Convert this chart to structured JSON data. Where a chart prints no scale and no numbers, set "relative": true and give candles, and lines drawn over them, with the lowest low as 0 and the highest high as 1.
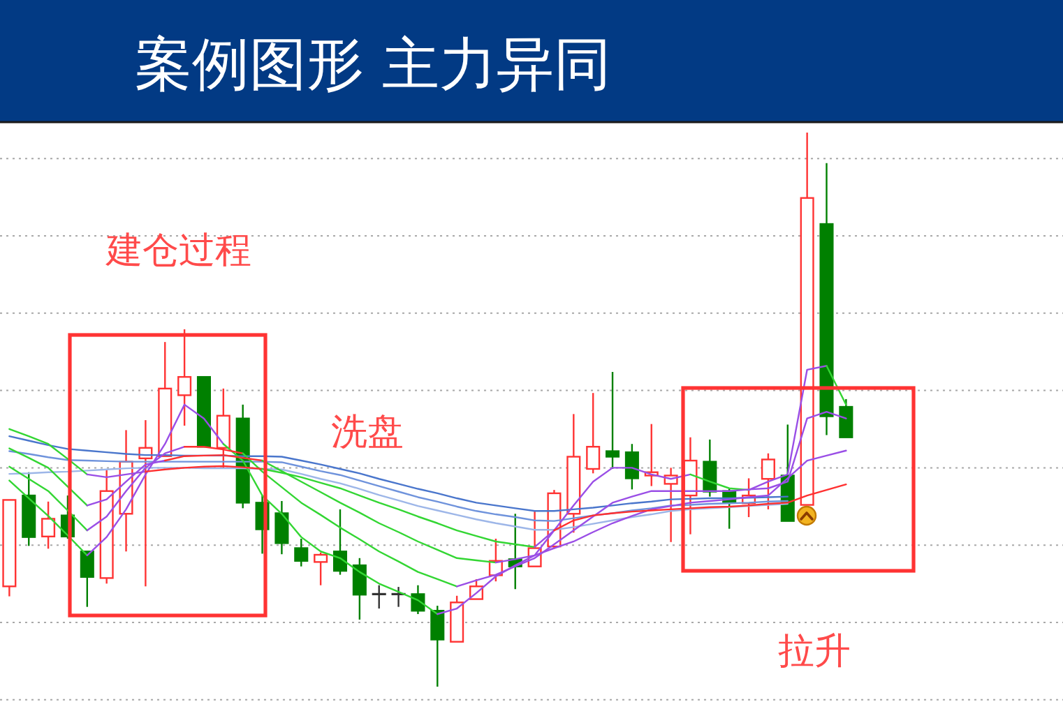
{
  "chart_data": {
    "type": "candlestick",
    "title": "案例图形 主力异同",
    "annotations": [
      "建仓过程",
      "洗盘",
      "拉升"
    ],
    "relative": true,
    "grid": "y",
    "categories": [
      null,
      null,
      null,
      null,
      null,
      null,
      null,
      null,
      null,
      null,
      null,
      null,
      null,
      null,
      null,
      null,
      null,
      null,
      null,
      null,
      null,
      null,
      null,
      null,
      null,
      null,
      null,
      null,
      null,
      null,
      null,
      null,
      null,
      null,
      null,
      null,
      null,
      null,
      null,
      null,
      null,
      null,
      null,
      null
    ],
    "ohlc": [
      [
        0.181,
        0.337,
        0.163,
        0.337
      ],
      [
        0.345,
        0.387,
        0.254,
        0.27
      ],
      [
        0.271,
        0.334,
        0.249,
        0.303
      ],
      [
        0.309,
        0.345,
        0.267,
        0.271
      ],
      [
        0.244,
        0.244,
        0.144,
        0.198
      ],
      [
        0.196,
        0.391,
        0.186,
        0.353
      ],
      [
        0.312,
        0.463,
        0.244,
        0.406
      ],
      [
        0.412,
        0.481,
        0.181,
        0.431
      ],
      [
        0.416,
        0.622,
        0.416,
        0.538
      ],
      [
        0.526,
        0.645,
        0.471,
        0.559
      ],
      [
        0.559,
        0.559,
        0.433,
        0.433
      ],
      [
        0.431,
        0.538,
        0.395,
        0.489
      ],
      [
        0.484,
        0.509,
        0.322,
        0.332
      ],
      [
        0.332,
        0.345,
        0.24,
        0.284
      ],
      [
        0.313,
        0.335,
        0.239,
        0.259
      ],
      [
        0.25,
        0.267,
        0.217,
        0.227
      ],
      [
        0.225,
        0.242,
        0.183,
        0.238
      ],
      [
        0.244,
        0.32,
        0.202,
        0.209
      ],
      [
        0.219,
        0.232,
        0.121,
        0.166
      ],
      [
        0.167,
        0.183,
        0.141,
        0.167
      ],
      [
        0.167,
        0.18,
        0.144,
        0.167
      ],
      [
        0.167,
        0.183,
        0.131,
        0.137
      ],
      [
        0.137,
        0.146,
        0,
        0.085
      ],
      [
        0.081,
        0.164,
        0.081,
        0.152
      ],
      [
        0.158,
        0.194,
        0.158,
        0.181
      ],
      [
        0.201,
        0.267,
        0.19,
        0.227
      ],
      [
        0.23,
        0.312,
        0.176,
        0.217
      ],
      [
        0.217,
        0.317,
        0.217,
        0.25
      ],
      [
        0.253,
        0.355,
        0.249,
        0.349
      ],
      [
        0.312,
        0.492,
        0.278,
        0.415
      ],
      [
        0.393,
        0.53,
        0.385,
        0.433
      ],
      [
        0.425,
        0.568,
        0.393,
        0.415
      ],
      [
        0.423,
        0.438,
        0.356,
        0.376
      ],
      [
        0.381,
        0.474,
        0.362,
        0.387
      ],
      [
        0.366,
        0.395,
        0.261,
        0.381
      ],
      [
        0.345,
        0.45,
        0.275,
        0.408
      ],
      [
        0.406,
        0.446,
        0.343,
        0.352
      ],
      [
        0.353,
        0.358,
        0.285,
        0.332
      ],
      [
        0.331,
        0.376,
        0.306,
        0.345
      ],
      [
        0.375,
        0.421,
        0.32,
        0.41
      ],
      [
        0.381,
        0.473,
        0.299,
        0.299
      ],
      [
        0.328,
        1,
        0.328,
        0.882
      ],
      [
        0.835,
        0.945,
        0.454,
        0.488
      ],
      [
        0.505,
        0.519,
        0.45,
        0.45
      ]
    ],
    "colors": [
      "#ff3333",
      "#008000",
      "#ff3333",
      "#008000",
      "#008000",
      "#ff3333",
      "#ff3333",
      "#ff3333",
      "#ff3333",
      "#ff3333",
      "#008000",
      "#ff3333",
      "#008000",
      "#008000",
      "#008000",
      "#008000",
      "#ff3333",
      "#008000",
      "#008000",
      "#333333",
      "#333333",
      "#008000",
      "#008000",
      "#ff3333",
      "#ff3333",
      "#ff3333",
      "#008000",
      "#ff3333",
      "#ff3333",
      "#ff3333",
      "#ff3333",
      "#008000",
      "#008000",
      "#ff3333",
      "#ff3333",
      "#ff3333",
      "#008000",
      "#008000",
      "#ff3333",
      "#ff3333",
      "#008000",
      "#ff3333",
      "#008000",
      "#008000"
    ],
    "series": [
      {
        "type": "line",
        "color": "#4a76cc",
        "values": [
          0.452,
          0.444,
          0.436,
          0.429,
          0.426,
          0.423,
          0.42,
          0.418,
          0.418,
          0.417,
          0.417,
          0.417,
          0.416,
          0.416,
          0.415,
          0.408,
          0.401,
          0.393,
          0.385,
          0.375,
          0.366,
          0.357,
          0.349,
          0.34,
          0.332,
          0.327,
          0.322,
          0.317,
          0.317,
          0.32,
          0.323,
          0.327,
          0.331,
          0.334,
          0.338,
          0.339,
          0.34,
          0.34,
          0.341,
          0.342,
          0.343,
          null,
          null,
          null
        ]
      },
      {
        "type": "line",
        "color": "#6f93dc",
        "values": [
          0.425,
          0.42,
          0.414,
          0.409,
          0.408,
          0.407,
          0.406,
          0.406,
          0.406,
          0.406,
          0.406,
          0.406,
          0.406,
          0.406,
          0.405,
          0.397,
          0.389,
          0.382,
          0.372,
          0.362,
          0.352,
          0.342,
          0.334,
          0.325,
          0.317,
          0.311,
          0.306,
          0.3,
          0.299,
          0.304,
          0.309,
          0.313,
          0.318,
          0.322,
          0.327,
          0.328,
          0.33,
          0.331,
          0.332,
          0.334,
          0.335,
          null,
          null,
          null
        ]
      },
      {
        "type": "line",
        "color": "#9db6e8",
        "values": [
          0.384,
          0.385,
          0.387,
          0.388,
          0.39,
          0.392,
          0.394,
          0.395,
          0.395,
          0.395,
          0.394,
          0.394,
          0.394,
          0.393,
          0.392,
          0.384,
          0.375,
          0.367,
          0.357,
          0.346,
          0.336,
          0.326,
          0.318,
          0.31,
          0.302,
          0.295,
          0.289,
          0.283,
          0.283,
          0.288,
          0.294,
          0.3,
          0.306,
          0.311,
          0.317,
          0.32,
          0.322,
          0.324,
          0.326,
          0.328,
          0.33,
          null,
          null,
          null
        ]
      },
      {
        "type": "line",
        "color": "#33d633",
        "values": [
          0.372,
          0.34,
          0.308,
          0.273,
          0.237,
          null,
          null,
          null,
          null,
          null,
          null,
          null,
          null,
          null,
          null,
          null,
          null,
          null,
          null,
          null,
          null,
          null,
          null,
          null,
          null,
          null,
          null,
          null,
          null,
          null,
          null,
          null,
          null,
          null,
          null,
          null,
          null,
          null,
          null,
          null,
          null,
          null,
          null,
          null
        ]
      },
      {
        "type": "line",
        "color": "#9a4ee6",
        "values": [
          null,
          null,
          null,
          null,
          0.237,
          0.27,
          0.32,
          0.383,
          0.438,
          0.509,
          0.484,
          0.438,
          null,
          null,
          null,
          null,
          null,
          null,
          null,
          null,
          null,
          null,
          null,
          null,
          null,
          null,
          null,
          null,
          null,
          null,
          null,
          null,
          null,
          null,
          null,
          null,
          null,
          null,
          null,
          null,
          null,
          null,
          null,
          null
        ]
      },
      {
        "type": "line",
        "color": "#33d633",
        "values": [
          null,
          null,
          null,
          null,
          null,
          null,
          null,
          null,
          null,
          null,
          null,
          0.438,
          0.408,
          0.345,
          0.312,
          0.27,
          0.244,
          0.232,
          0.207,
          0.186,
          0.171,
          0.156,
          0.131,
          null,
          null,
          null,
          null,
          null,
          null,
          null,
          null,
          null,
          null,
          null,
          null,
          null,
          null,
          null,
          null,
          null,
          null,
          null,
          null,
          null
        ]
      },
      {
        "type": "line",
        "color": "#9a4ee6",
        "values": [
          null,
          null,
          null,
          null,
          null,
          null,
          null,
          null,
          null,
          null,
          null,
          null,
          null,
          null,
          null,
          null,
          null,
          null,
          null,
          null,
          null,
          null,
          0.131,
          0.141,
          0.169,
          0.199,
          0.219,
          0.237,
          0.282,
          0.327,
          0.37,
          0.395,
          0.395,
          0.383,
          0.375,
          0.383,
          null,
          null,
          null,
          null,
          null,
          null,
          null,
          null
        ]
      },
      {
        "type": "line",
        "color": "#33d633",
        "values": [
          null,
          null,
          null,
          null,
          null,
          null,
          null,
          null,
          null,
          null,
          null,
          null,
          null,
          null,
          null,
          null,
          null,
          null,
          null,
          null,
          null,
          null,
          null,
          null,
          null,
          null,
          null,
          null,
          null,
          null,
          null,
          null,
          null,
          null,
          null,
          0.383,
          0.37,
          0.358,
          0.355,
          null,
          null,
          null,
          null,
          null
        ]
      },
      {
        "type": "line",
        "color": "#9a4ee6",
        "values": [
          null,
          null,
          null,
          null,
          null,
          null,
          null,
          null,
          null,
          null,
          null,
          null,
          null,
          null,
          null,
          null,
          null,
          null,
          null,
          null,
          null,
          null,
          null,
          null,
          null,
          null,
          null,
          null,
          null,
          null,
          null,
          null,
          null,
          null,
          null,
          null,
          null,
          null,
          0.355,
          0.37,
          0.383,
          0.572,
          0.579,
          null
        ]
      },
      {
        "type": "line",
        "color": "#33d633",
        "values": [
          null,
          null,
          null,
          null,
          null,
          null,
          null,
          null,
          null,
          null,
          null,
          null,
          null,
          null,
          null,
          null,
          null,
          null,
          null,
          null,
          null,
          null,
          null,
          null,
          null,
          null,
          null,
          null,
          null,
          null,
          null,
          null,
          null,
          null,
          null,
          null,
          null,
          null,
          null,
          null,
          null,
          null,
          0.579,
          0.509
        ]
      },
      {
        "type": "line",
        "color": "#33d633",
        "values": [
          0.397,
          0.375,
          0.353,
          0.318,
          0.282,
          null,
          null,
          null,
          null,
          null,
          null,
          null,
          null,
          null,
          null,
          null,
          null,
          null,
          null,
          null,
          null,
          null,
          null,
          null,
          null,
          null,
          null,
          null,
          null,
          null,
          null,
          null,
          null,
          null,
          null,
          null,
          null,
          null,
          null,
          null,
          null,
          null,
          null,
          null
        ]
      },
      {
        "type": "line",
        "color": "#9a4ee6",
        "values": [
          null,
          null,
          null,
          null,
          0.282,
          0.307,
          0.353,
          0.395,
          0.421,
          0.433,
          null,
          null,
          null,
          null,
          null,
          null,
          null,
          null,
          null,
          null,
          null,
          null,
          null,
          null,
          null,
          null,
          null,
          null,
          null,
          null,
          null,
          null,
          null,
          null,
          null,
          null,
          null,
          null,
          null,
          null,
          null,
          null,
          null,
          null
        ]
      },
      {
        "type": "line",
        "color": "#ff3030",
        "values": [
          null,
          null,
          null,
          null,
          null,
          null,
          null,
          null,
          null,
          0.433,
          0.433,
          0.428,
          0.421,
          null,
          null,
          null,
          null,
          null,
          null,
          null,
          null,
          null,
          null,
          null,
          null,
          null,
          null,
          null,
          null,
          null,
          null,
          null,
          null,
          null,
          null,
          null,
          null,
          null,
          null,
          null,
          null,
          null,
          null,
          null
        ]
      },
      {
        "type": "line",
        "color": "#33d633",
        "values": [
          null,
          null,
          null,
          null,
          null,
          null,
          null,
          null,
          null,
          null,
          null,
          null,
          0.421,
          0.388,
          0.36,
          0.332,
          0.31,
          0.287,
          0.266,
          0.244,
          0.226,
          0.207,
          0.194,
          0.181,
          null,
          null,
          null,
          null,
          null,
          null,
          null,
          null,
          null,
          null,
          null,
          null,
          null,
          null,
          null,
          null,
          null,
          null,
          null,
          null
        ]
      },
      {
        "type": "line",
        "color": "#9a4ee6",
        "values": [
          null,
          null,
          null,
          null,
          null,
          null,
          null,
          null,
          null,
          null,
          null,
          null,
          null,
          null,
          null,
          null,
          null,
          null,
          null,
          null,
          null,
          null,
          null,
          0.181,
          0.192,
          0.202,
          0.217,
          0.232,
          0.257,
          0.282,
          0.307,
          0.332,
          0.343,
          0.353,
          0.353,
          0.353,
          0.353,
          0.353,
          0.356,
          0.358,
          0.37,
          0.484,
          0.496,
          0.484
        ]
      },
      {
        "type": "line",
        "color": "#33d633",
        "values": [
          0.43,
          0.413,
          0.395,
          0.361,
          0.327,
          null,
          null,
          null,
          null,
          null,
          null,
          null,
          null,
          null,
          null,
          null,
          null,
          null,
          null,
          null,
          null,
          null,
          null,
          null,
          null,
          null,
          null,
          null,
          null,
          null,
          null,
          null,
          null,
          null,
          null,
          null,
          null,
          null,
          null,
          null,
          null,
          null,
          null,
          null
        ]
      },
      {
        "type": "line",
        "color": "#9a4ee6",
        "values": [
          null,
          null,
          null,
          null,
          0.327,
          0.338,
          0.37,
          0.401,
          0.408,
          null,
          null,
          null,
          null,
          null,
          null,
          null,
          null,
          null,
          null,
          null,
          null,
          null,
          null,
          null,
          null,
          null,
          null,
          null,
          null,
          null,
          null,
          null,
          null,
          null,
          null,
          null,
          null,
          null,
          null,
          null,
          null,
          null,
          null,
          null
        ]
      },
      {
        "type": "line",
        "color": "#ff3030",
        "values": [
          null,
          null,
          null,
          null,
          null,
          null,
          null,
          null,
          0.408,
          0.416,
          0.417,
          0.418,
          0.413,
          0.408,
          null,
          null,
          null,
          null,
          null,
          null,
          null,
          null,
          null,
          null,
          null,
          null,
          null,
          null,
          null,
          null,
          null,
          null,
          null,
          null,
          null,
          null,
          null,
          null,
          null,
          null,
          null,
          null,
          null,
          null
        ]
      },
      {
        "type": "line",
        "color": "#33d633",
        "values": [
          null,
          null,
          null,
          null,
          null,
          null,
          null,
          null,
          null,
          null,
          null,
          null,
          null,
          0.408,
          0.389,
          0.37,
          0.351,
          0.332,
          0.314,
          0.295,
          0.279,
          0.262,
          0.247,
          0.232,
          0.228,
          0.224,
          null,
          null,
          null,
          null,
          null,
          null,
          null,
          null,
          null,
          null,
          null,
          null,
          null,
          null,
          null,
          null,
          null,
          null
        ]
      },
      {
        "type": "line",
        "color": "#9a4ee6",
        "values": [
          null,
          null,
          null,
          null,
          null,
          null,
          null,
          null,
          null,
          null,
          null,
          null,
          null,
          null,
          null,
          null,
          null,
          null,
          null,
          null,
          null,
          null,
          null,
          null,
          null,
          0.224,
          0.23,
          0.237,
          0.25,
          0.262,
          0.279,
          0.295,
          0.308,
          0.32,
          0.326,
          0.332,
          0.335,
          0.338,
          0.342,
          0.345,
          0.376,
          0.408,
          0.417,
          0.426
        ]
      },
      {
        "type": "line",
        "color": "#33d633",
        "values": [
          0.465,
          0.452,
          0.438,
          0.411,
          0.383,
          null,
          null,
          null,
          null,
          null,
          null,
          null,
          null,
          null,
          null,
          null,
          null,
          null,
          null,
          null,
          null,
          null,
          null,
          null,
          null,
          null,
          null,
          null,
          null,
          null,
          null,
          null,
          null,
          null,
          null,
          null,
          null,
          null,
          null,
          null,
          null,
          null,
          null,
          null
        ]
      },
      {
        "type": "line",
        "color": "#9a4ee6",
        "values": [
          null,
          null,
          null,
          null,
          0.383,
          0.378,
          0.383,
          0.388,
          null,
          null,
          null,
          null,
          null,
          null,
          null,
          null,
          null,
          null,
          null,
          null,
          null,
          null,
          null,
          null,
          null,
          null,
          null,
          null,
          null,
          null,
          null,
          null,
          null,
          null,
          null,
          null,
          null,
          null,
          null,
          null,
          null,
          null,
          null,
          null
        ]
      },
      {
        "type": "line",
        "color": "#ff3030",
        "values": [
          null,
          null,
          null,
          null,
          null,
          null,
          null,
          0.388,
          0.392,
          0.395,
          0.397,
          0.398,
          0.396,
          0.393,
          null,
          null,
          null,
          null,
          null,
          null,
          null,
          null,
          null,
          null,
          null,
          null,
          null,
          null,
          null,
          null,
          null,
          null,
          null,
          null,
          null,
          null,
          null,
          null,
          null,
          null,
          null,
          null,
          null,
          null
        ]
      },
      {
        "type": "line",
        "color": "#33d633",
        "values": [
          null,
          null,
          null,
          null,
          null,
          null,
          null,
          null,
          null,
          null,
          null,
          null,
          null,
          0.393,
          0.386,
          0.378,
          0.368,
          0.358,
          0.345,
          0.332,
          0.32,
          0.307,
          0.295,
          0.282,
          0.272,
          0.262,
          0.257,
          0.252,
          null,
          null,
          null,
          null,
          null,
          null,
          null,
          null,
          null,
          null,
          null,
          null,
          null,
          null,
          null,
          null
        ]
      },
      {
        "type": "line",
        "color": "#9a4ee6",
        "values": [
          null,
          null,
          null,
          null,
          null,
          null,
          null,
          null,
          null,
          null,
          null,
          null,
          null,
          null,
          null,
          null,
          null,
          null,
          null,
          null,
          null,
          null,
          null,
          null,
          null,
          null,
          null,
          0.252,
          0.282,
          null,
          null,
          null,
          null,
          null,
          null,
          null,
          null,
          null,
          null,
          null,
          null,
          null,
          null,
          null
        ]
      },
      {
        "type": "line",
        "color": "#ff3030",
        "values": [
          null,
          null,
          null,
          null,
          null,
          null,
          null,
          null,
          null,
          null,
          null,
          null,
          null,
          null,
          null,
          null,
          null,
          null,
          null,
          null,
          null,
          null,
          null,
          null,
          null,
          null,
          null,
          null,
          0.282,
          0.3,
          0.309,
          0.313,
          0.316,
          0.318,
          0.32,
          0.322,
          0.324,
          0.325,
          0.327,
          0.33,
          0.332,
          0.345,
          0.355,
          0.365
        ]
      }
    ]
  }
}
